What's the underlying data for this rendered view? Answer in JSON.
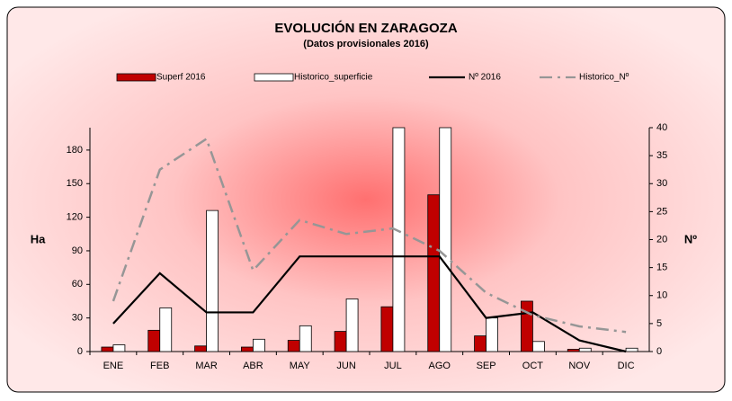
{
  "chart_data": {
    "type": "bar-line",
    "title": "EVOLUCIÓN EN ZARAGOZA",
    "subtitle": "(Datos provisionales 2016)",
    "ylabel": "Ha",
    "y2label": "Nº",
    "categories": [
      "ENE",
      "FEB",
      "MAR",
      "ABR",
      "MAY",
      "JUN",
      "JUL",
      "AGO",
      "SEP",
      "OCT",
      "NOV",
      "DIC"
    ],
    "series": [
      {
        "name": "Superf 2016",
        "kind": "bar",
        "color": "#c00000",
        "values": [
          4,
          19,
          5,
          4,
          10,
          18,
          40,
          140,
          14,
          45,
          2,
          0
        ]
      },
      {
        "name": "Historico_superficie",
        "kind": "bar",
        "color": "#ffffff",
        "values": [
          6,
          39,
          126,
          11,
          23,
          47,
          200,
          200,
          30,
          9,
          3,
          3
        ]
      },
      {
        "name": "Nº 2016",
        "kind": "line",
        "axis": "y2",
        "color": "#000000",
        "style": "solid",
        "values": [
          5,
          14,
          7,
          7,
          17,
          17,
          17,
          17,
          6,
          7,
          2,
          0
        ]
      },
      {
        "name": "Historico_Nº",
        "kind": "line",
        "axis": "y2",
        "color": "#969696",
        "style": "dashdot",
        "values": [
          9,
          32.5,
          38,
          14.5,
          23.5,
          21,
          22,
          18,
          10.5,
          6.5,
          4.5,
          3.5
        ]
      }
    ],
    "ylim": [
      0,
      200
    ],
    "yticks": [
      0,
      30,
      60,
      90,
      120,
      150,
      180
    ],
    "y2lim": [
      0,
      40
    ],
    "y2ticks": [
      0,
      5,
      10,
      15,
      20,
      25,
      30,
      35,
      40
    ],
    "legend": "top"
  }
}
